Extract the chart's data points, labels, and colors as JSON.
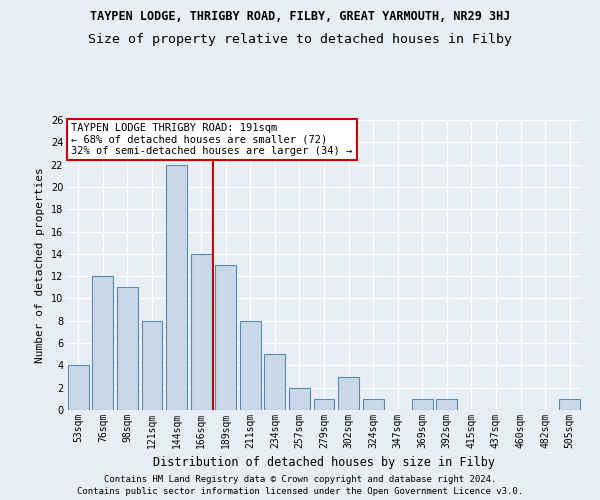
{
  "title": "TAYPEN LODGE, THRIGBY ROAD, FILBY, GREAT YARMOUTH, NR29 3HJ",
  "subtitle": "Size of property relative to detached houses in Filby",
  "xlabel": "Distribution of detached houses by size in Filby",
  "ylabel": "Number of detached properties",
  "categories": [
    "53sqm",
    "76sqm",
    "98sqm",
    "121sqm",
    "144sqm",
    "166sqm",
    "189sqm",
    "211sqm",
    "234sqm",
    "257sqm",
    "279sqm",
    "302sqm",
    "324sqm",
    "347sqm",
    "369sqm",
    "392sqm",
    "415sqm",
    "437sqm",
    "460sqm",
    "482sqm",
    "505sqm"
  ],
  "values": [
    4,
    12,
    11,
    8,
    22,
    14,
    13,
    8,
    5,
    2,
    1,
    3,
    1,
    0,
    1,
    1,
    0,
    0,
    0,
    0,
    1
  ],
  "bar_color": "#c8d8e8",
  "bar_edge_color": "#5a8ab0",
  "vline_x_idx": 5.5,
  "vline_color": "#cc0000",
  "annotation_text": "TAYPEN LODGE THRIGBY ROAD: 191sqm\n← 68% of detached houses are smaller (72)\n32% of semi-detached houses are larger (34) →",
  "annotation_box_color": "#cc0000",
  "ylim": [
    0,
    26
  ],
  "yticks": [
    0,
    2,
    4,
    6,
    8,
    10,
    12,
    14,
    16,
    18,
    20,
    22,
    24,
    26
  ],
  "footer1": "Contains HM Land Registry data © Crown copyright and database right 2024.",
  "footer2": "Contains public sector information licensed under the Open Government Licence v3.0.",
  "bg_color": "#e8eef5",
  "plot_bg_color": "#e8eef5",
  "grid_color": "#ffffff",
  "title_fontsize": 8.5,
  "subtitle_fontsize": 9.5,
  "xlabel_fontsize": 8.5,
  "ylabel_fontsize": 8,
  "tick_fontsize": 7,
  "annotation_fontsize": 7.5,
  "footer_fontsize": 6.5
}
